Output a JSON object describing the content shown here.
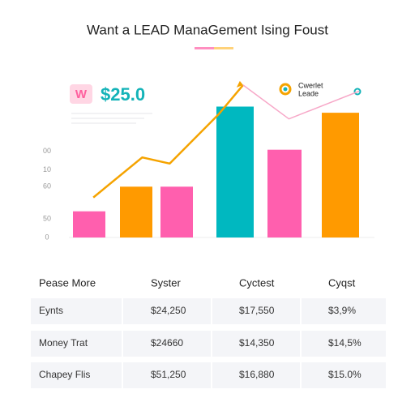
{
  "chart_data": {
    "type": "bar",
    "title": "Want a LEAD ManaGement Ising Foust",
    "badge": "W",
    "headline": "$25.0",
    "legend_lines": [
      "Cwerlet",
      "Leade"
    ],
    "categories": [
      null,
      null,
      null,
      null,
      null,
      null
    ],
    "values": [
      17,
      33,
      33,
      85,
      57,
      81
    ],
    "colors": [
      "#ff5fae",
      "#ff9a00",
      "#ff5fae",
      "#00b8c0",
      "#ff5fae",
      "#ff9a00"
    ],
    "ylim": [
      0,
      100
    ],
    "yticks": [
      {
        "value": 56,
        "label": "00"
      },
      {
        "value": 44,
        "label": "10"
      },
      {
        "value": 33,
        "label": "60"
      },
      {
        "value": 12,
        "label": "50"
      },
      0
    ],
    "xlim": [
      0,
      100
    ],
    "lines": [
      {
        "color": "#f5a300",
        "x": [
          8,
          24,
          33,
          49,
          57
        ],
        "values": [
          26,
          52,
          48,
          80,
          99
        ]
      },
      {
        "color": "#f7a8c8",
        "x": [
          57,
          72,
          95
        ],
        "values": [
          99,
          77,
          95
        ]
      }
    ]
  },
  "table": {
    "header": [
      "Pease More",
      "Syster",
      "Cyctest",
      "Cyqst"
    ],
    "rows": [
      [
        "Eynts",
        "$24,250",
        "$17,550",
        "$3,9%"
      ],
      [
        "Money Trat",
        "$24660",
        "$14,350",
        "$14,5%"
      ],
      [
        "Chapey Flis",
        "$51,250",
        "$16,880",
        "$15.0%"
      ]
    ]
  }
}
